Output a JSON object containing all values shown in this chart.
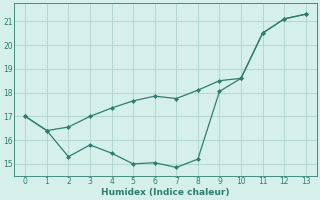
{
  "line1_x": [
    0,
    1,
    2,
    3,
    4,
    5,
    6,
    7,
    8,
    9,
    10,
    11,
    12,
    13
  ],
  "line1_y": [
    17.0,
    16.4,
    16.55,
    17.0,
    17.35,
    17.65,
    17.85,
    17.75,
    18.1,
    18.5,
    18.6,
    20.5,
    21.1,
    21.3
  ],
  "line2_x": [
    0,
    1,
    2,
    3,
    4,
    5,
    6,
    7,
    8,
    9,
    10,
    11,
    12,
    13
  ],
  "line2_y": [
    17.0,
    16.4,
    15.3,
    15.8,
    15.45,
    15.0,
    15.05,
    14.85,
    15.2,
    18.05,
    18.6,
    20.5,
    21.1,
    21.3
  ],
  "color": "#2e7d6e",
  "xlabel": "Humidex (Indice chaleur)",
  "xlim": [
    -0.5,
    13.5
  ],
  "ylim": [
    14.5,
    21.75
  ],
  "yticks": [
    15,
    16,
    17,
    18,
    19,
    20,
    21
  ],
  "xticks": [
    0,
    1,
    2,
    3,
    4,
    5,
    6,
    7,
    8,
    9,
    10,
    11,
    12,
    13
  ],
  "bg_color": "#d5f0ea",
  "grid_color": "#aed4c8"
}
